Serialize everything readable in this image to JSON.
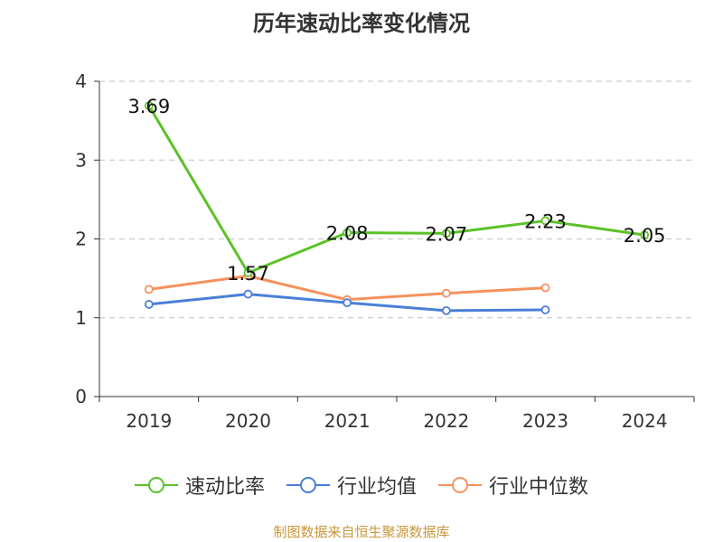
{
  "chart_data": {
    "type": "line",
    "title": "历年速动比率变化情况",
    "categories": [
      "2019",
      "2020",
      "2021",
      "2022",
      "2023",
      "2024"
    ],
    "ylim": [
      0,
      4
    ],
    "yticks": [
      0,
      1,
      2,
      3,
      4
    ],
    "grid": true,
    "legend_position": "bottom",
    "series": [
      {
        "name": "速动比率",
        "color": "#5bc227",
        "values": [
          3.69,
          1.57,
          2.08,
          2.07,
          2.23,
          2.05
        ],
        "labels": [
          "3.69",
          "1.57",
          "2.08",
          "2.07",
          "2.23",
          "2.05"
        ]
      },
      {
        "name": "行业均值",
        "color": "#4a7fd8",
        "values": [
          1.17,
          1.3,
          1.19,
          1.09,
          1.1,
          null
        ]
      },
      {
        "name": "行业中位数",
        "color": "#f5915c",
        "values": [
          1.36,
          1.53,
          1.23,
          1.31,
          1.38,
          null
        ]
      }
    ]
  },
  "source": "制图数据来自恒生聚源数据库"
}
